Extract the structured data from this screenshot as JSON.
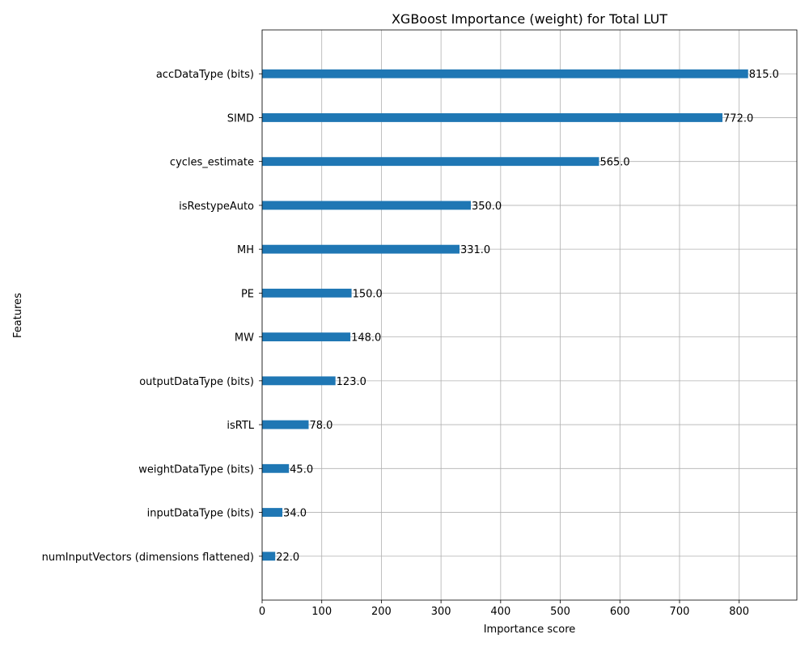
{
  "chart_data": {
    "type": "bar",
    "orientation": "horizontal",
    "title": "XGBoost Importance (weight) for Total LUT",
    "xlabel": "Importance score",
    "ylabel": "Features",
    "xlim": [
      0,
      896.75
    ],
    "xticks": [
      0,
      100,
      200,
      300,
      400,
      500,
      600,
      700,
      800
    ],
    "grid": true,
    "bar_color": "#1f77b4",
    "categories": [
      "accDataType (bits)",
      "SIMD",
      "cycles_estimate",
      "isRestypeAuto",
      "MH",
      "PE",
      "MW",
      "outputDataType (bits)",
      "isRTL",
      "weightDataType (bits)",
      "inputDataType (bits)",
      "numInputVectors (dimensions flattened)"
    ],
    "values": [
      815,
      772,
      565,
      350,
      331,
      150,
      148,
      123,
      78,
      45,
      34,
      22
    ],
    "value_labels": [
      "815.0",
      "772.0",
      "565.0",
      "350.0",
      "331.0",
      "150.0",
      "148.0",
      "123.0",
      "78.0",
      "45.0",
      "34.0",
      "22.0"
    ]
  }
}
